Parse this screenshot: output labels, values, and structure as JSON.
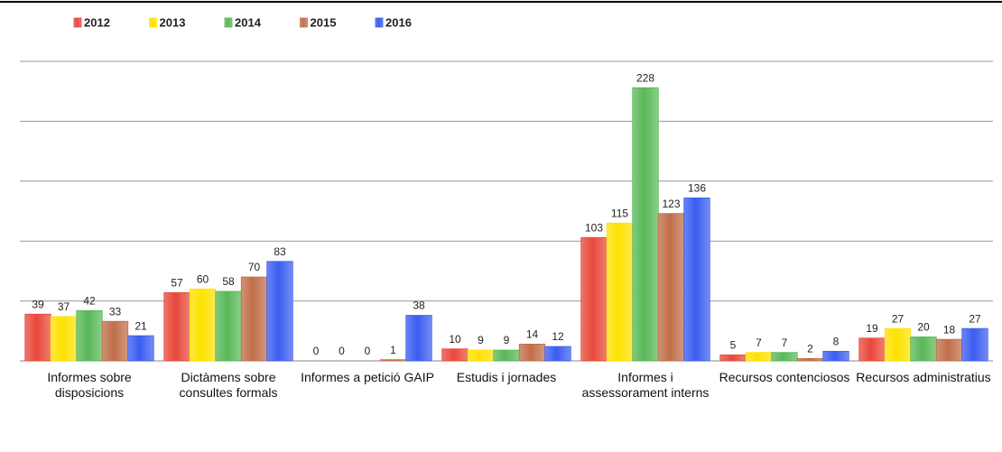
{
  "chart_data": {
    "type": "bar",
    "categories": [
      "Informes sobre disposicions",
      "Dictàmens sobre consultes formals",
      "Informes a petició GAIP",
      "Estudis i jornades",
      "Informes i assessorament interns",
      "Recursos contenciosos",
      "Recursos administratius"
    ],
    "series": [
      {
        "name": "2012",
        "color": "#e8483a",
        "values": [
          39,
          57,
          0,
          10,
          103,
          5,
          19
        ]
      },
      {
        "name": "2013",
        "color": "#ffe100",
        "values": [
          37,
          60,
          0,
          9,
          115,
          7,
          27
        ]
      },
      {
        "name": "2014",
        "color": "#58b858",
        "values": [
          42,
          58,
          0,
          9,
          228,
          7,
          20
        ]
      },
      {
        "name": "2015",
        "color": "#c06e48",
        "values": [
          33,
          70,
          1,
          14,
          123,
          2,
          18
        ]
      },
      {
        "name": "2016",
        "color": "#3a5cf0",
        "values": [
          21,
          83,
          38,
          12,
          136,
          8,
          27
        ]
      }
    ],
    "ylim": [
      0,
      250
    ],
    "yticks": [
      0,
      50,
      100,
      150,
      200,
      250
    ],
    "grid": true,
    "legend": "top-left"
  }
}
